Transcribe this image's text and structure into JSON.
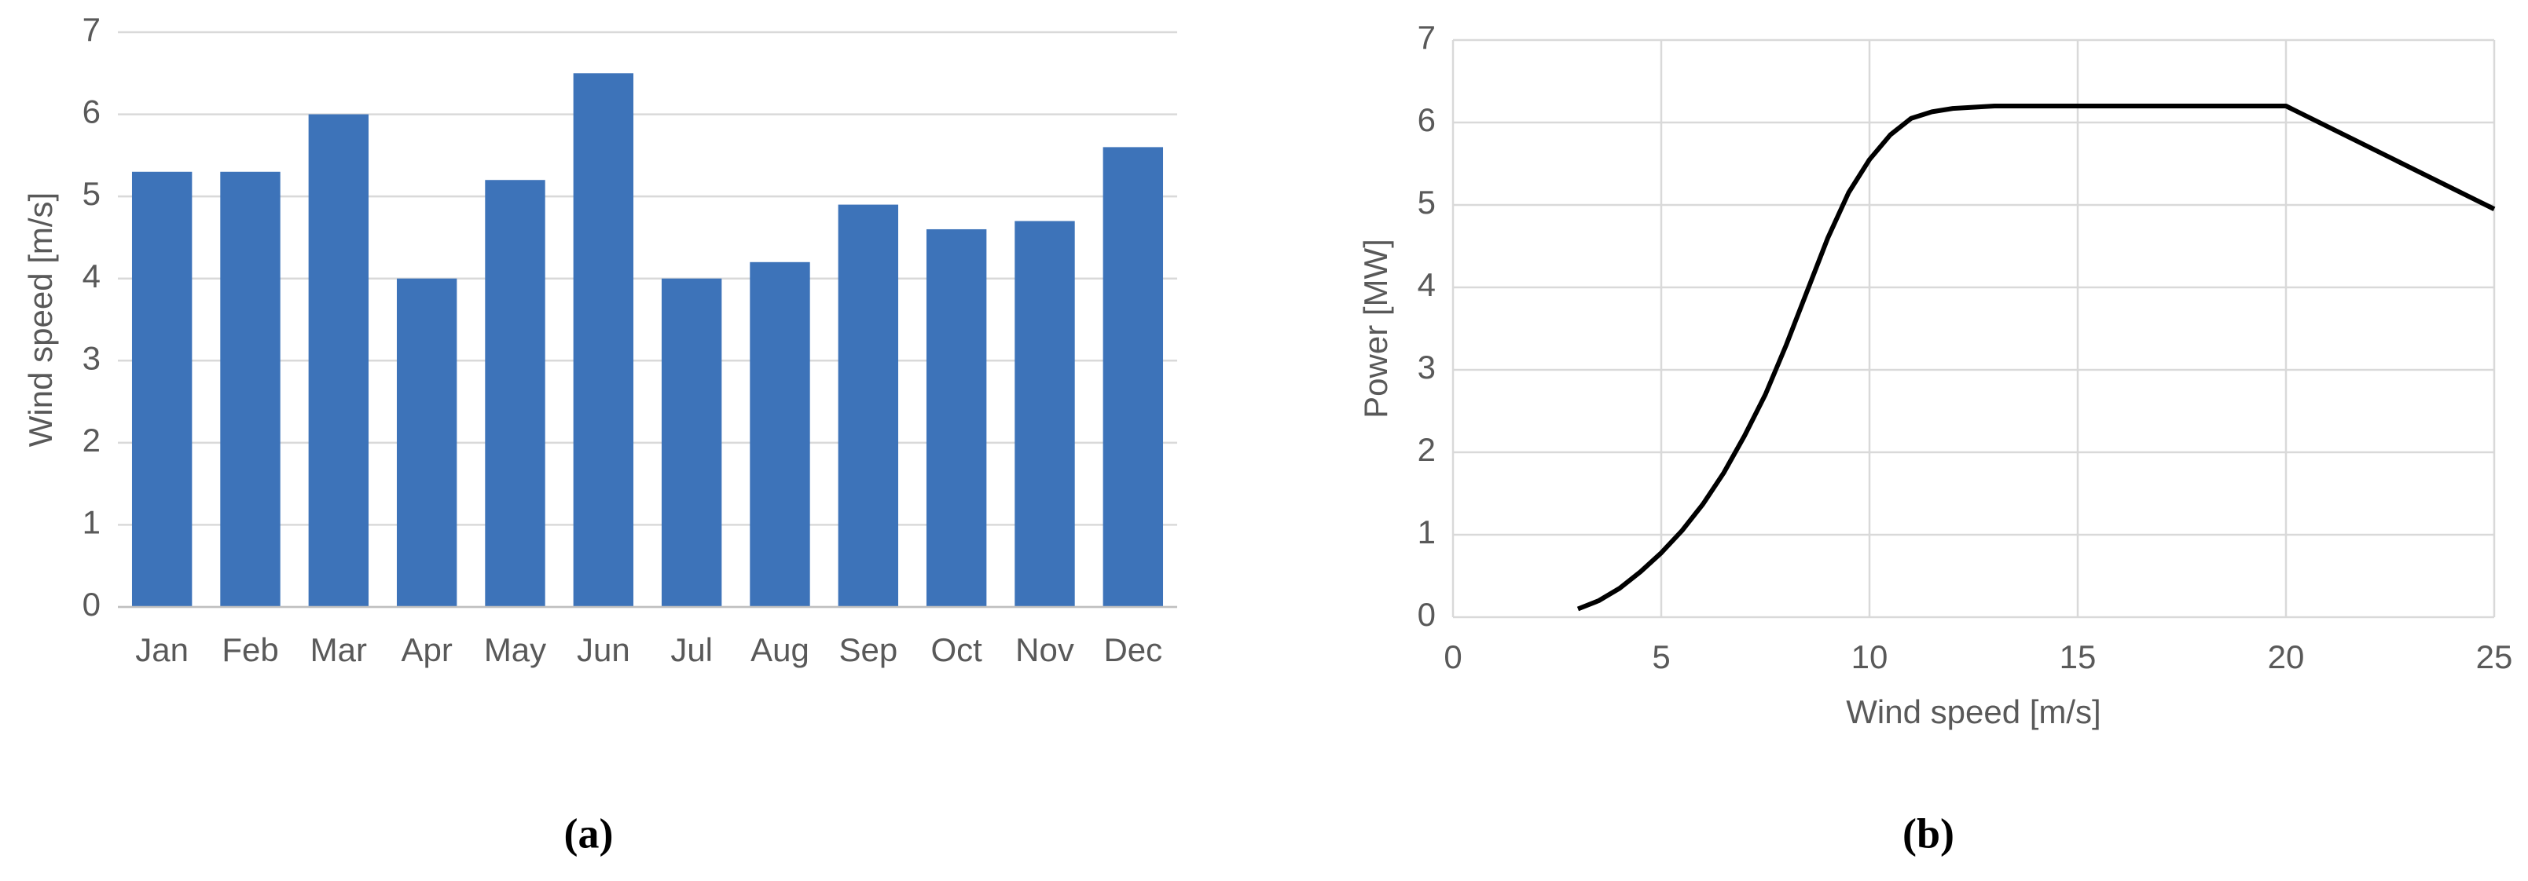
{
  "chart_data": [
    {
      "type": "bar",
      "caption": "(a)",
      "ylabel": "Wind speed [m/s]",
      "categories": [
        "Jan",
        "Feb",
        "Mar",
        "Apr",
        "May",
        "Jun",
        "Jul",
        "Aug",
        "Sep",
        "Oct",
        "Nov",
        "Dec"
      ],
      "values": [
        5.3,
        5.3,
        6.0,
        4.0,
        5.2,
        6.5,
        4.0,
        4.2,
        4.9,
        4.6,
        4.7,
        5.6
      ],
      "color": "#3d73b9",
      "ylim": [
        0,
        7
      ],
      "yticks": [
        0,
        1,
        2,
        3,
        4,
        5,
        6,
        7
      ],
      "grid": true
    },
    {
      "type": "line",
      "caption": "(b)",
      "xlabel": "Wind speed [m/s]",
      "ylabel": "Power [MW]",
      "x": [
        3,
        3.5,
        4,
        4.5,
        5,
        5.5,
        6,
        6.5,
        7,
        7.5,
        8,
        8.5,
        9,
        9.5,
        10,
        10.5,
        11,
        11.5,
        12,
        13,
        14,
        20,
        25
      ],
      "series": [
        {
          "color": "#000000",
          "values": [
            0.1,
            0.2,
            0.35,
            0.55,
            0.78,
            1.05,
            1.37,
            1.75,
            2.2,
            2.7,
            3.3,
            3.95,
            4.6,
            5.15,
            5.55,
            5.85,
            6.05,
            6.13,
            6.17,
            6.2,
            6.2,
            6.2,
            4.95
          ]
        }
      ],
      "xlim": [
        0,
        25
      ],
      "xticks": [
        0,
        5,
        10,
        15,
        20,
        25
      ],
      "ylim": [
        0,
        7
      ],
      "yticks": [
        0,
        1,
        2,
        3,
        4,
        5,
        6,
        7
      ],
      "grid": true
    }
  ]
}
